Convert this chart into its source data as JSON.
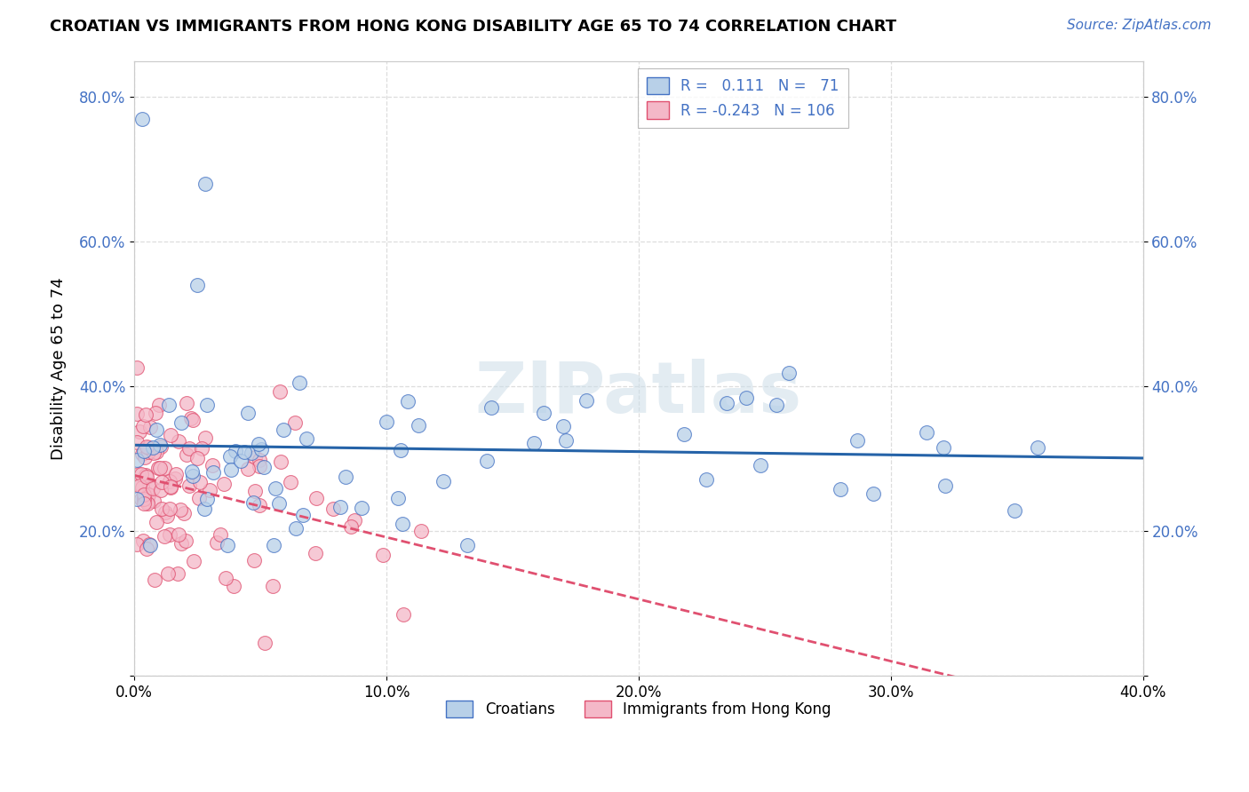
{
  "title": "CROATIAN VS IMMIGRANTS FROM HONG KONG DISABILITY AGE 65 TO 74 CORRELATION CHART",
  "source": "Source: ZipAtlas.com",
  "ylabel": "Disability Age 65 to 74",
  "legend_label1": "Croatians",
  "legend_label2": "Immigrants from Hong Kong",
  "r1": 0.111,
  "n1": 71,
  "r2": -0.243,
  "n2": 106,
  "x_min": 0.0,
  "x_max": 0.4,
  "y_min": 0.0,
  "y_max": 0.85,
  "y_ticks": [
    0.0,
    0.2,
    0.4,
    0.6,
    0.8
  ],
  "y_tick_labels": [
    "",
    "20.0%",
    "40.0%",
    "60.0%",
    "80.0%"
  ],
  "x_ticks": [
    0.0,
    0.1,
    0.2,
    0.3,
    0.4
  ],
  "x_tick_labels": [
    "0.0%",
    "10.0%",
    "20.0%",
    "30.0%",
    "40.0%"
  ],
  "color_croatian_fill": "#b8d0e8",
  "color_croatian_edge": "#4472c4",
  "color_hk_fill": "#f4b8c8",
  "color_hk_edge": "#e05070",
  "color_line_croatian": "#2563a8",
  "color_line_hk": "#e05070",
  "background_color": "#ffffff",
  "grid_color": "#dddddd",
  "tick_color": "#4472c4",
  "title_color": "#000000",
  "source_color": "#4472c4",
  "watermark_color": "#ccdde8"
}
